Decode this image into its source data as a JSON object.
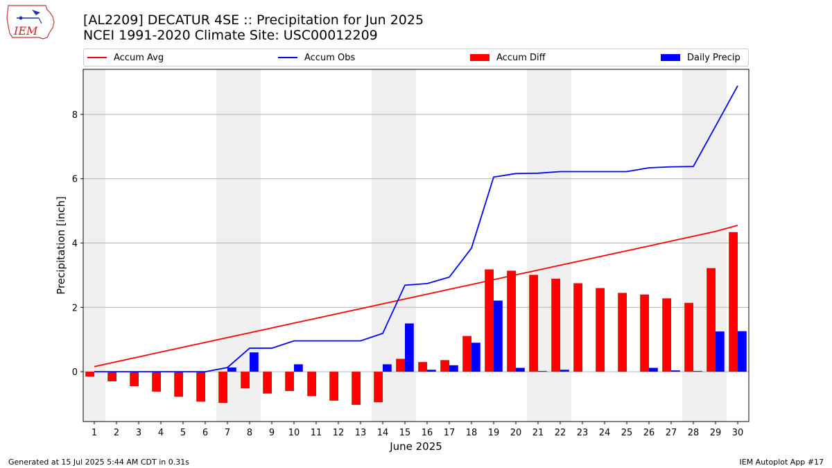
{
  "header": {
    "logo_text": "IEM",
    "title_line1": "[AL2209] DECATUR 4SE :: Precipitation for Jun 2025",
    "title_line2": "NCEI 1991-2020 Climate Site: USC00012209"
  },
  "legend": {
    "items": [
      {
        "label": "Accum Avg",
        "color": "#ff0000",
        "kind": "line"
      },
      {
        "label": "Accum Obs",
        "color": "#0000ff",
        "kind": "line"
      },
      {
        "label": "Accum Diff",
        "color": "#ff0000",
        "kind": "box"
      },
      {
        "label": "Daily Precip",
        "color": "#0000ff",
        "kind": "box"
      }
    ]
  },
  "chart_data": {
    "type": "bar",
    "xlabel": "June 2025",
    "ylabel": "Precipitation [inch]",
    "xlim": [
      0.5,
      30.5
    ],
    "ylim": [
      -1.55,
      9.4
    ],
    "y_ticks": [
      0,
      2,
      4,
      6,
      8
    ],
    "categories": [
      "1",
      "2",
      "3",
      "4",
      "5",
      "6",
      "7",
      "8",
      "9",
      "10",
      "11",
      "12",
      "13",
      "14",
      "15",
      "16",
      "17",
      "18",
      "19",
      "20",
      "21",
      "22",
      "23",
      "24",
      "25",
      "26",
      "27",
      "28",
      "29",
      "30"
    ],
    "weekend_bands": [
      [
        0.5,
        1.5
      ],
      [
        6.5,
        8.5
      ],
      [
        13.5,
        15.5
      ],
      [
        20.5,
        22.5
      ],
      [
        27.5,
        29.5
      ]
    ],
    "grid": "horizontal",
    "series": [
      {
        "name": "Accum Diff",
        "kind": "bar",
        "color": "#ff0000",
        "values": [
          -0.15,
          -0.3,
          -0.45,
          -0.62,
          -0.78,
          -0.93,
          -0.97,
          -0.52,
          -0.68,
          -0.6,
          -0.76,
          -0.9,
          -1.03,
          -0.95,
          0.4,
          0.3,
          0.36,
          1.11,
          3.18,
          3.14,
          3.01,
          2.89,
          2.75,
          2.6,
          2.45,
          2.4,
          2.28,
          2.14,
          3.22,
          4.34
        ]
      },
      {
        "name": "Daily Precip",
        "kind": "bar",
        "color": "#0000ff",
        "values": [
          0,
          0,
          0,
          0,
          0,
          0,
          0.13,
          0.6,
          0,
          0.23,
          0,
          0,
          0,
          0.23,
          1.5,
          0.06,
          0.2,
          0.9,
          2.21,
          0.12,
          0.02,
          0.06,
          0,
          0,
          0,
          0.12,
          0.04,
          0.02,
          1.25,
          1.26
        ]
      },
      {
        "name": "Accum Avg",
        "kind": "line",
        "color": "#ff0000",
        "values": [
          0.16,
          0.31,
          0.46,
          0.61,
          0.76,
          0.91,
          1.06,
          1.21,
          1.36,
          1.51,
          1.66,
          1.81,
          1.96,
          2.11,
          2.26,
          2.41,
          2.56,
          2.71,
          2.86,
          3.01,
          3.16,
          3.31,
          3.46,
          3.61,
          3.76,
          3.91,
          4.06,
          4.21,
          4.36,
          4.55
        ]
      },
      {
        "name": "Accum Obs",
        "kind": "line",
        "color": "#0000ff",
        "values": [
          0,
          0,
          0,
          0,
          0,
          0,
          0.13,
          0.73,
          0.73,
          0.96,
          0.96,
          0.96,
          0.96,
          1.19,
          2.69,
          2.74,
          2.94,
          3.84,
          6.05,
          6.16,
          6.17,
          6.22,
          6.22,
          6.22,
          6.22,
          6.34,
          6.37,
          6.38,
          7.63,
          8.89
        ]
      }
    ]
  },
  "footer": {
    "generated": "Generated at 15 Jul 2025 5:44 AM CDT in 0.31s",
    "app": "IEM Autoplot App #17"
  }
}
